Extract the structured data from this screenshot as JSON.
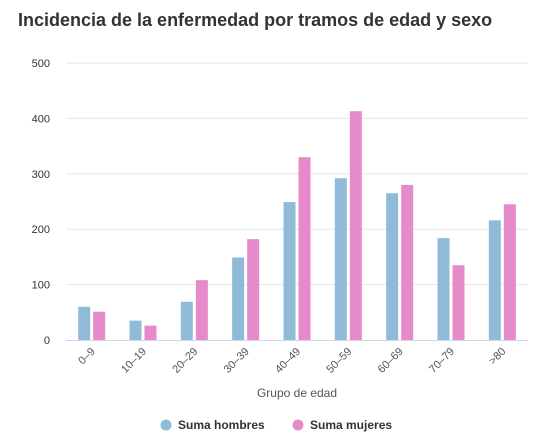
{
  "chart_data": {
    "type": "bar",
    "title": "Incidencia de la enfermedad por tramos de edad y sexo",
    "xlabel": "Grupo de edad",
    "ylabel": "",
    "ylim": [
      0,
      500
    ],
    "yticks": [
      0,
      100,
      200,
      300,
      400,
      500
    ],
    "categories": [
      "0–9",
      "10–19",
      "20–29",
      "30–39",
      "40–49",
      "50–59",
      "60–69",
      "70–79",
      ">80"
    ],
    "series": [
      {
        "name": "Suma hombres",
        "color": "#8fbbd9",
        "values": [
          60,
          35,
          69,
          149,
          249,
          292,
          265,
          184,
          216
        ]
      },
      {
        "name": "Suma mujeres",
        "color": "#e58bc9",
        "values": [
          51,
          26,
          108,
          182,
          330,
          413,
          280,
          135,
          245
        ]
      }
    ],
    "grid": true,
    "legend_position": "bottom"
  }
}
